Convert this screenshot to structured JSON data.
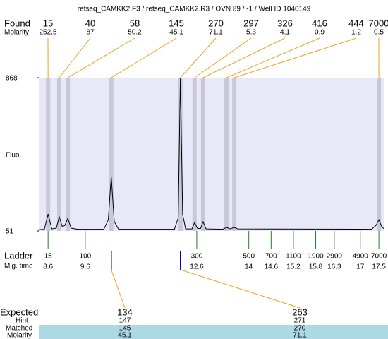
{
  "chart_data": {
    "type": "electropherogram",
    "title": "refseq_CAMKK2.F3 / refseq_CAMKK2.R3 / OVN 89 / -1 / Well ID 1040149",
    "ylabel": "Fluo.",
    "ylim": [
      51,
      868
    ],
    "yticks": [
      51,
      868
    ],
    "xlim": [
      8.35,
      17.65
    ],
    "found": {
      "label": "Found",
      "molarity_label": "Molarity",
      "sizes": [
        15,
        40,
        58,
        145,
        270,
        297,
        326,
        416,
        444,
        7000
      ],
      "molarity": [
        252.5,
        87,
        50.2,
        45.1,
        71.1,
        5.3,
        4.1,
        0.9,
        1.2,
        0.5
      ],
      "x": [
        8.6,
        8.9,
        9.13,
        10.3,
        12.16,
        12.54,
        12.77,
        13.4,
        13.61,
        17.5
      ],
      "color": "#f0a020"
    },
    "ladder": {
      "label": "Ladder",
      "time_label": "Mig. time",
      "sizes": [
        15,
        100,
        300,
        500,
        700,
        1100,
        1900,
        2900,
        4900,
        7000
      ],
      "x": [
        8.6,
        9.6,
        12.6,
        14,
        14.6,
        15.2,
        15.8,
        16.3,
        17,
        17.5
      ],
      "color": "#208020"
    },
    "trace": {
      "color": "#000000",
      "x": [
        8.35,
        8.5,
        8.6,
        8.7,
        8.82,
        8.9,
        8.98,
        9.05,
        9.13,
        9.22,
        9.4,
        10.1,
        10.22,
        10.3,
        10.38,
        10.5,
        12.0,
        12.1,
        12.16,
        12.22,
        12.3,
        12.47,
        12.54,
        12.62,
        12.7,
        12.77,
        12.85,
        13.3,
        13.4,
        13.5,
        13.61,
        13.7,
        17.3,
        17.42,
        17.5,
        17.58,
        17.65
      ],
      "values": [
        58,
        60,
        141,
        62,
        66,
        126,
        75,
        80,
        118,
        66,
        60,
        60,
        110,
        341,
        100,
        60,
        60,
        120,
        868,
        140,
        62,
        62,
        96,
        64,
        64,
        100,
        62,
        60,
        70,
        62,
        70,
        62,
        60,
        80,
        111,
        72,
        62
      ]
    },
    "expected": {
      "label": "Expected",
      "hint_label": "Hint",
      "matched_label": "Matched",
      "molarity_label": "Molarity",
      "sizes": [
        134,
        263
      ],
      "hint": [
        147,
        271
      ],
      "matched": [
        145,
        270
      ],
      "molarity": [
        45.1,
        71.1
      ],
      "color": "#0000cc"
    }
  }
}
